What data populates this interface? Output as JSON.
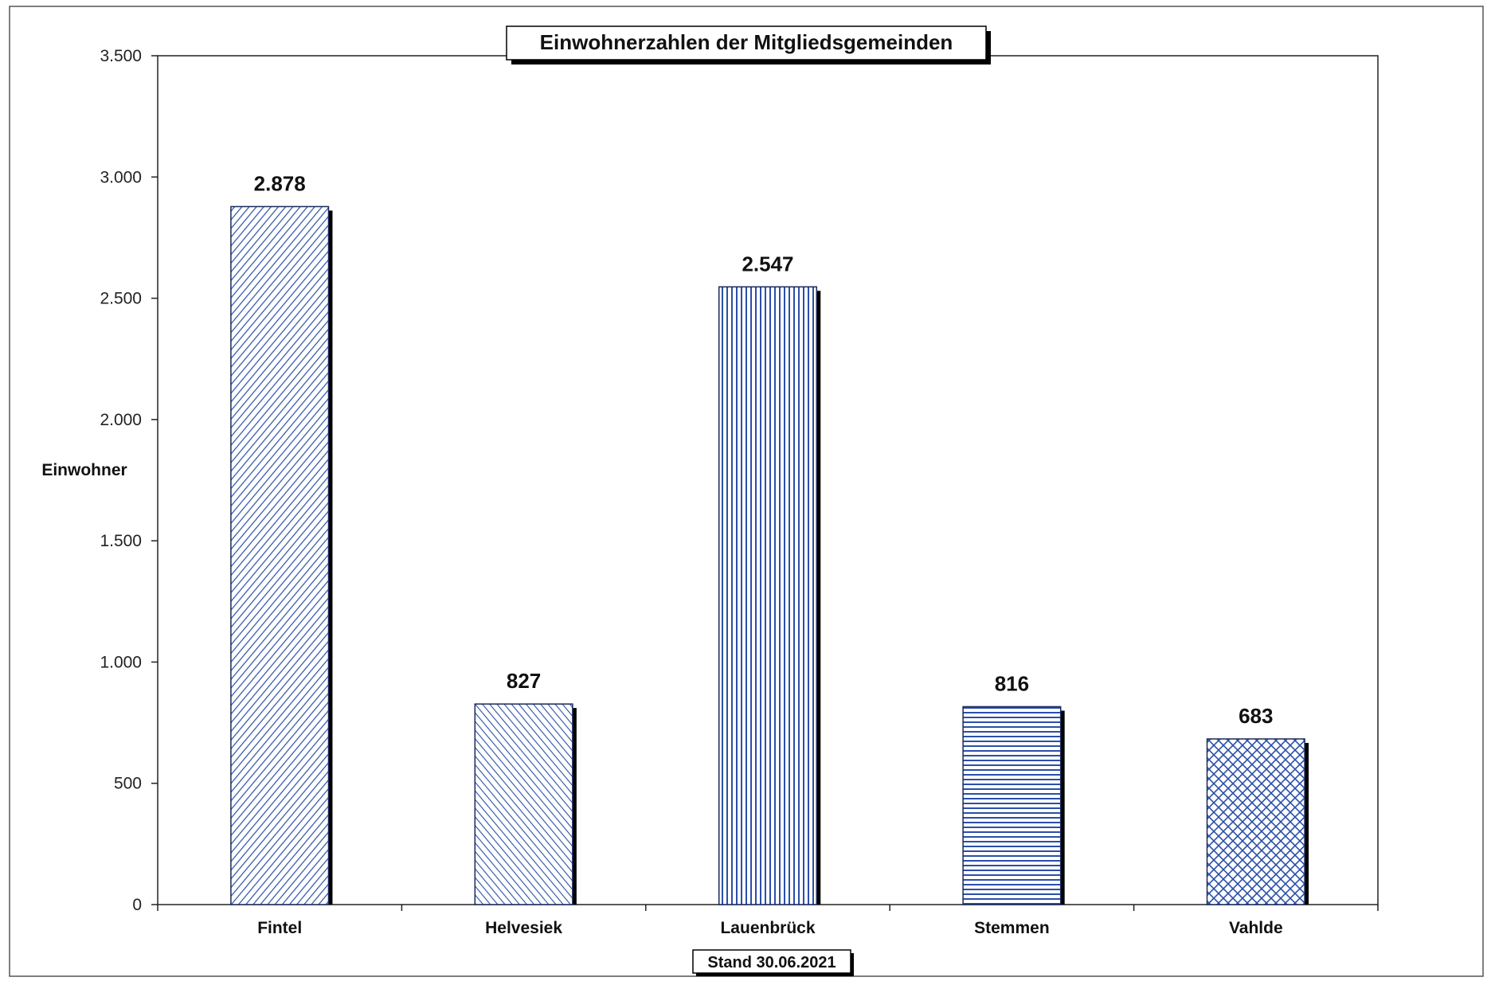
{
  "chart_data": {
    "type": "bar",
    "title": "Einwohnerzahlen der Mitgliedsgemeinden",
    "ylabel": "Einwohner",
    "xlabel": "",
    "footnote": "Stand 30.06.2021",
    "categories": [
      "Fintel",
      "Helvesiek",
      "Lauenbrück",
      "Stemmen",
      "Vahlde"
    ],
    "values": [
      2878,
      827,
      2547,
      816,
      683
    ],
    "value_labels": [
      "2.878",
      "827",
      "2.547",
      "816",
      "683"
    ],
    "patterns": [
      "diagonal-forward-dense",
      "diagonal-backward",
      "vertical-lines",
      "horizontal-lines",
      "crosshatch"
    ],
    "ylim": [
      0,
      3500
    ],
    "yticks": [
      0,
      500,
      1000,
      1500,
      2000,
      2500,
      3000,
      3500
    ],
    "ytick_labels": [
      "0",
      "500",
      "1.000",
      "1.500",
      "2.000",
      "2.500",
      "3.000",
      "3.500"
    ],
    "grid": false,
    "legend": "none",
    "colors": {
      "bar_pattern": "#2b4fa8",
      "bar_fill": "#ffffff",
      "bar_shadow": "#000000",
      "axis": "#333333",
      "text": "#111111"
    }
  }
}
